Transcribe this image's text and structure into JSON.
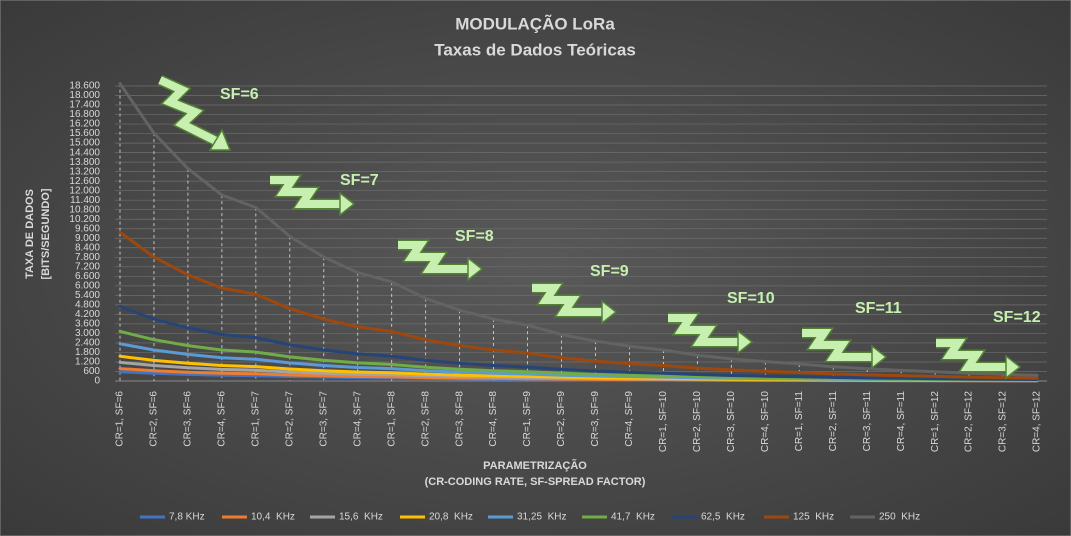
{
  "chart_data": {
    "type": "line",
    "title": "MODULAÇÃO LoRa",
    "subtitle": "Taxas de Dados Teóricas",
    "y_label": "TAXA DE DADOS",
    "y_sublabel": "[BITS/SEGUNDO]",
    "x_label": "PARAMETRIZAÇÃO",
    "x_sublabel": "(CR-CODING RATE, SF-SPREAD FACTOR)",
    "categories": [
      "CR=1, SF=6",
      "CR=2, SF=6",
      "CR=3, SF=6",
      "CR=4, SF=6",
      "CR=1, SF=7",
      "CR=2, SF=7",
      "CR=3, SF=7",
      "CR=4, SF=7",
      "CR=1, SF=8",
      "CR=2, SF=8",
      "CR=3, SF=8",
      "CR=4, SF=8",
      "CR=1, SF=9",
      "CR=2, SF=9",
      "CR=3, SF=9",
      "CR=4, SF=9",
      "CR=1, SF=10",
      "CR=2, SF=10",
      "CR=3, SF=10",
      "CR=4, SF=10",
      "CR=1, SF=11",
      "CR=2, SF=11",
      "CR=3, SF=11",
      "CR=4, SF=11",
      "CR=1, SF=12",
      "CR=2, SF=12",
      "CR=3, SF=12",
      "CR=4, SF=12"
    ],
    "series": [
      {
        "name": "7,8 KHz",
        "color": "#4472c4",
        "values": [
          585,
          488,
          418,
          366,
          341,
          284,
          244,
          213,
          195,
          163,
          139,
          122,
          110,
          91,
          78,
          69,
          61,
          51,
          44,
          38,
          34,
          28,
          24,
          21,
          18,
          15,
          13,
          11
        ]
      },
      {
        "name": "10,4  KHz",
        "color": "#ed7d31",
        "values": [
          780,
          650,
          557,
          488,
          455,
          379,
          325,
          284,
          260,
          217,
          186,
          163,
          146,
          122,
          104,
          91,
          81,
          68,
          58,
          51,
          45,
          37,
          32,
          28,
          24,
          20,
          17,
          15
        ]
      },
      {
        "name": "15,6  KHz",
        "color": "#a5a5a5",
        "values": [
          1170,
          975,
          836,
          731,
          683,
          569,
          488,
          427,
          390,
          325,
          279,
          244,
          219,
          183,
          157,
          137,
          122,
          102,
          87,
          76,
          67,
          56,
          48,
          42,
          37,
          30,
          26,
          23
        ]
      },
      {
        "name": "20,8  KHz",
        "color": "#ffc000",
        "values": [
          1560,
          1300,
          1114,
          975,
          910,
          758,
          650,
          569,
          520,
          433,
          371,
          325,
          293,
          244,
          209,
          183,
          163,
          135,
          116,
          102,
          89,
          74,
          64,
          56,
          49,
          41,
          35,
          30
        ]
      },
      {
        "name": "31,25  KHz",
        "color": "#5b9bd5",
        "values": [
          2344,
          1953,
          1674,
          1465,
          1367,
          1139,
          977,
          854,
          781,
          651,
          558,
          488,
          439,
          366,
          314,
          275,
          244,
          203,
          174,
          153,
          134,
          112,
          96,
          84,
          73,
          61,
          52,
          46
        ]
      },
      {
        "name": "41,7  KHz",
        "color": "#70ad47",
        "values": [
          3128,
          2606,
          2234,
          1955,
          1824,
          1520,
          1303,
          1140,
          1043,
          869,
          745,
          652,
          586,
          489,
          419,
          367,
          326,
          271,
          233,
          204,
          179,
          149,
          128,
          112,
          98,
          81,
          70,
          61
        ]
      },
      {
        "name": "62,5  KHz",
        "color": "#264478",
        "values": [
          4688,
          3906,
          3348,
          2930,
          2734,
          2279,
          1953,
          1709,
          1563,
          1302,
          1116,
          977,
          879,
          732,
          628,
          549,
          488,
          407,
          349,
          305,
          269,
          224,
          192,
          168,
          146,
          122,
          105,
          92
        ]
      },
      {
        "name": "125  KHz",
        "color": "#9e480e",
        "values": [
          9375,
          7813,
          6696,
          5859,
          5469,
          4557,
          3906,
          3418,
          3125,
          2604,
          2232,
          1953,
          1758,
          1465,
          1256,
          1099,
          977,
          814,
          698,
          610,
          537,
          448,
          384,
          336,
          293,
          244,
          209,
          183
        ]
      },
      {
        "name": "250  KHz",
        "color": "#636363",
        "values": [
          18750,
          15625,
          13393,
          11719,
          10938,
          9115,
          7813,
          6836,
          6250,
          5208,
          4464,
          3906,
          3516,
          2930,
          2511,
          2197,
          1953,
          1628,
          1395,
          1221,
          1074,
          895,
          767,
          671,
          586,
          488,
          419,
          366
        ]
      }
    ],
    "ylim": [
      0,
      18600
    ],
    "yticks": [
      0,
      600,
      {
        "value": 1200,
        "label": "1.200"
      },
      {
        "value": 1800,
        "label": "1.800"
      },
      {
        "value": 2400,
        "label": "2.400"
      },
      {
        "value": 3000,
        "label": "3.000"
      },
      {
        "value": 3600,
        "label": "3.600"
      },
      {
        "value": 4200,
        "label": "4.200"
      },
      {
        "value": 4800,
        "label": "4.800"
      },
      {
        "value": 5400,
        "label": "5.400"
      },
      {
        "value": 6000,
        "label": "6.000"
      },
      {
        "value": 6600,
        "label": "6.600"
      },
      {
        "value": 7200,
        "label": "7.200"
      },
      {
        "value": 7800,
        "label": "7.800"
      },
      {
        "value": 8400,
        "label": "8.400"
      },
      {
        "value": 9000,
        "label": "9.000"
      },
      {
        "value": 9600,
        "label": "9.600"
      },
      {
        "value": 10200,
        "label": "10.200"
      },
      {
        "value": 10800,
        "label": "10.800"
      },
      {
        "value": 11400,
        "label": "11.400"
      },
      {
        "value": 12000,
        "label": "12.000"
      },
      {
        "value": 12600,
        "label": "12.600"
      },
      {
        "value": 13200,
        "label": "13.200"
      },
      {
        "value": 13800,
        "label": "13.800"
      },
      {
        "value": 14400,
        "label": "14.400"
      },
      {
        "value": 15000,
        "label": "15.000"
      },
      {
        "value": 15600,
        "label": "15.600"
      },
      {
        "value": 16200,
        "label": "16.200"
      },
      {
        "value": 16800,
        "label": "16.800"
      },
      {
        "value": 17400,
        "label": "17.400"
      },
      {
        "value": 18000,
        "label": "18.000"
      },
      {
        "value": 18600,
        "label": "18.600"
      }
    ],
    "grid": true,
    "drop_lines": true,
    "legend": "bottom",
    "annotations": [
      "SF=6",
      "SF=7",
      "SF=8",
      "SF=9",
      "SF=10",
      "SF=11",
      "SF=12"
    ]
  }
}
